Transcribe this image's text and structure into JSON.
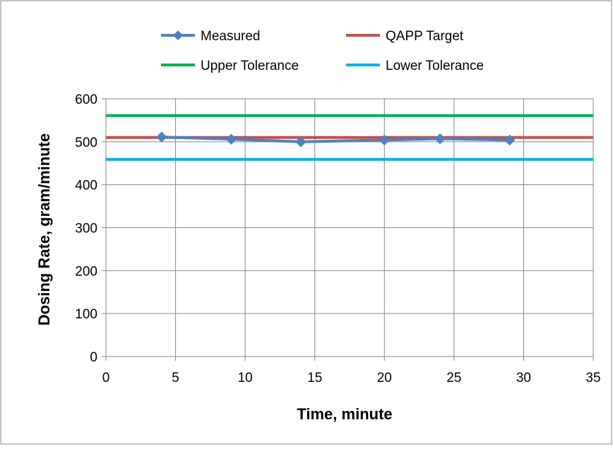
{
  "chart_data": {
    "type": "line",
    "title": "",
    "xlabel": "Time, minute",
    "ylabel": "Dosing Rate, gram/minute",
    "xlim": [
      0,
      35
    ],
    "ylim": [
      0,
      600
    ],
    "x_ticks": [
      0,
      5,
      10,
      15,
      20,
      25,
      30,
      35
    ],
    "y_ticks": [
      0,
      100,
      200,
      300,
      400,
      500,
      600
    ],
    "grid": true,
    "legend_position": "top",
    "series": [
      {
        "name": "Measured",
        "color": "#4F81BD",
        "marker": "diamond",
        "x": [
          4,
          9,
          14,
          20,
          24,
          29
        ],
        "y": [
          511,
          506,
          500,
          504,
          507,
          504
        ]
      },
      {
        "name": "QAPP Target",
        "color": "#C0504D",
        "marker": "none",
        "x": [
          0,
          35
        ],
        "y": [
          510,
          510
        ]
      },
      {
        "name": "Upper Tolerance",
        "color": "#00B050",
        "marker": "none",
        "x": [
          0,
          35
        ],
        "y": [
          561,
          561
        ]
      },
      {
        "name": "Lower Tolerance",
        "color": "#00B0F0",
        "marker": "none",
        "x": [
          0,
          35
        ],
        "y": [
          459,
          459
        ]
      }
    ]
  }
}
